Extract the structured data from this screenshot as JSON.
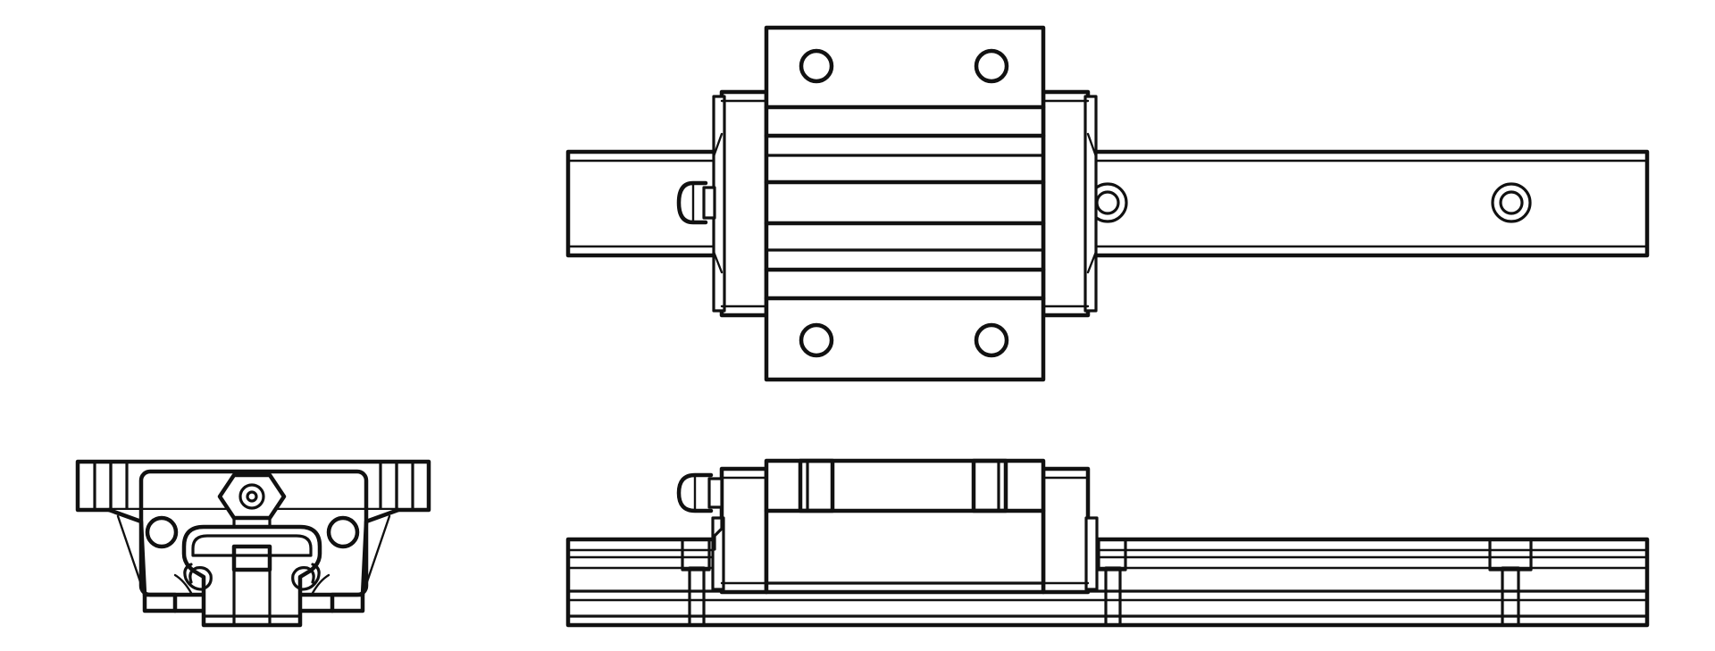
{
  "drawing": {
    "type": "technical-line-drawing",
    "subject": "linear-guide-carriage-on-rail",
    "views": [
      {
        "name": "end-view"
      },
      {
        "name": "top-view"
      },
      {
        "name": "side-view"
      }
    ],
    "colors": {
      "line": "#111111",
      "background": "#ffffff"
    }
  }
}
